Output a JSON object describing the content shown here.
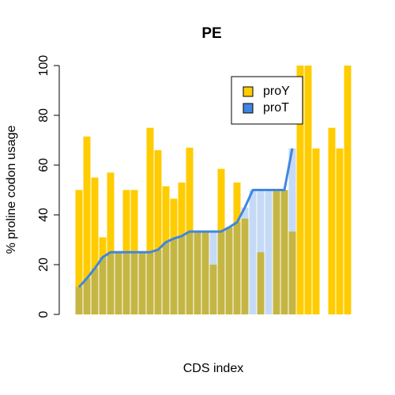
{
  "chart_data": {
    "type": "bar",
    "title": "PE",
    "xlabel": "CDS index",
    "ylabel": "% proline codon usage",
    "series": [
      {
        "name": "proY",
        "color": "#ffcc00",
        "values": [
          50,
          71.5,
          55,
          31,
          57,
          25,
          50,
          50,
          25,
          75,
          66,
          51.5,
          46.5,
          53,
          67,
          33.3,
          33.3,
          20,
          58.5,
          35,
          53,
          38.5,
          null,
          25,
          null,
          50,
          50,
          33.3,
          100,
          100,
          66.7,
          null,
          75,
          66.7,
          100
        ]
      },
      {
        "name": "proT",
        "color": "#3f86e0",
        "values": [
          11,
          14.5,
          18.5,
          23,
          25,
          25,
          25,
          25,
          25,
          25,
          26,
          29,
          30.5,
          31.5,
          33.3,
          33.3,
          33.3,
          33.3,
          33.3,
          35,
          37,
          43,
          50,
          50,
          50,
          50,
          50,
          66.7,
          null,
          null,
          null,
          null,
          null,
          null,
          null
        ]
      }
    ],
    "ylim": [
      0,
      100
    ],
    "yticks": [
      0,
      20,
      40,
      60,
      80,
      100
    ]
  }
}
